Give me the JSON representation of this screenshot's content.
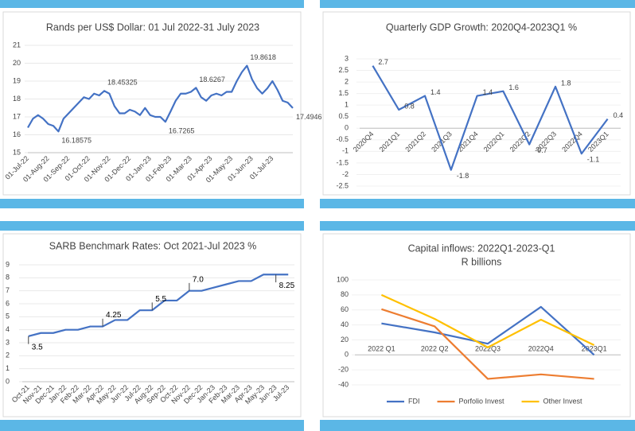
{
  "chart_data": [
    {
      "type": "line",
      "title": "Rands per US$ Dollar: 01 Jul 2022-31 July 2023",
      "color": "#4472c4",
      "categories": [
        "01-Jul-22",
        null,
        null,
        null,
        "01-Aug-22",
        null,
        null,
        null,
        "01-Sep-22",
        null,
        null,
        null,
        "01-Oct-22",
        null,
        null,
        null,
        "01-Nov-22",
        null,
        null,
        null,
        "01-Dec-22",
        null,
        null,
        null,
        "01-Jan-23",
        null,
        null,
        null,
        "01-Feb-23",
        null,
        null,
        null,
        "01-Mar-23",
        null,
        null,
        null,
        "01-Apr-23",
        null,
        null,
        null,
        "01-May-23",
        null,
        null,
        null,
        "01-Jun-23",
        null,
        null,
        null,
        "01-Jul-23",
        null,
        null,
        null,
        null
      ],
      "values": [
        16.4,
        16.9,
        17.1,
        16.9,
        16.6,
        16.5,
        16.18575,
        16.9,
        17.2,
        17.5,
        17.8,
        18.1,
        18.0,
        18.3,
        18.2,
        18.45325,
        18.3,
        17.6,
        17.2,
        17.2,
        17.4,
        17.3,
        17.1,
        17.5,
        17.1,
        17.0,
        17.0,
        16.7265,
        17.3,
        17.9,
        18.3,
        18.3,
        18.4,
        18.6267,
        18.1,
        17.9,
        18.2,
        18.3,
        18.2,
        18.4,
        18.4,
        19.0,
        19.5,
        19.8618,
        19.1,
        18.6,
        18.3,
        18.6,
        19.0,
        18.5,
        17.9,
        17.8,
        17.4946
      ],
      "value_labels": [
        null,
        null,
        null,
        null,
        null,
        null,
        "16.18575",
        null,
        null,
        null,
        null,
        null,
        null,
        null,
        null,
        "18.45325",
        null,
        null,
        null,
        null,
        null,
        null,
        null,
        null,
        null,
        null,
        null,
        "16.7265",
        null,
        null,
        null,
        null,
        null,
        "18.6267",
        null,
        null,
        null,
        null,
        null,
        null,
        null,
        null,
        null,
        "19.8618",
        null,
        null,
        null,
        null,
        null,
        null,
        null,
        null,
        "17.4946"
      ],
      "ylim": [
        15,
        21
      ],
      "yticks": [
        15,
        16,
        17,
        18,
        19,
        20,
        21
      ]
    },
    {
      "type": "line",
      "title": "Quarterly GDP Growth: 2020Q4-2023Q1  %",
      "color": "#4472c4",
      "categories": [
        "2020Q4",
        "2021Q1",
        "2021Q2",
        "2021Q3",
        "2021Q4",
        "2022Q1",
        "2022Q2",
        "2022Q3",
        "2022Q4",
        "2023Q1"
      ],
      "values": [
        2.7,
        0.8,
        1.4,
        -1.8,
        1.4,
        1.6,
        -0.7,
        1.8,
        -1.1,
        0.4
      ],
      "ylim": [
        -2.5,
        3
      ],
      "yticks": [
        -2.5,
        -2,
        -1.5,
        -1,
        -0.5,
        0,
        0.5,
        1,
        1.5,
        2,
        2.5,
        3
      ]
    },
    {
      "type": "line",
      "title": "SARB Benchmark Rates: Oct 2021-Jul 2023  %",
      "color": "#4472c4",
      "categories": [
        "Oct-21",
        "Nov-21",
        "Dec-21",
        "Jan-22",
        "Feb-22",
        "Mar-22",
        "Apr-22",
        "May-22",
        "Jun-22",
        "Jul-22",
        "Aug-22",
        "Sep-22",
        "Oct-22",
        "Nov-22",
        "Dec-22",
        "Jan-23",
        "Feb-23",
        "Mar-23",
        "Apr-23",
        "May-23",
        "Jun-23",
        "Jul-23"
      ],
      "values": [
        3.5,
        3.75,
        3.75,
        4.0,
        4.0,
        4.25,
        4.25,
        4.75,
        4.75,
        5.5,
        5.5,
        6.25,
        6.25,
        7.0,
        7.0,
        7.25,
        7.5,
        7.75,
        7.75,
        8.25,
        8.25,
        8.25
      ],
      "value_labels": [
        "3.5",
        null,
        null,
        null,
        null,
        null,
        "4.25",
        null,
        null,
        null,
        "5.5",
        null,
        null,
        "7.0",
        null,
        null,
        null,
        null,
        null,
        null,
        "8.25",
        null
      ],
      "ylim": [
        0,
        9
      ],
      "yticks": [
        0,
        1,
        2,
        3,
        4,
        5,
        6,
        7,
        8,
        9
      ]
    },
    {
      "type": "line",
      "title": "Capital inflows: 2022Q1-2023-Q1",
      "subtitle": "R billions",
      "categories": [
        "2022 Q1",
        "2022 Q2",
        "2022Q3",
        "2022Q4",
        "2023Q1"
      ],
      "series": [
        {
          "name": "FDI",
          "color": "#4472c4",
          "values": [
            42,
            30,
            15,
            64,
            0
          ]
        },
        {
          "name": "Porfolio Invest",
          "color": "#ed7d31",
          "values": [
            61,
            38,
            -32,
            -26,
            -32
          ]
        },
        {
          "name": "Other Invest",
          "color": "#ffc000",
          "values": [
            80,
            48,
            10,
            47,
            13
          ]
        }
      ],
      "ylim": [
        -40,
        100
      ],
      "yticks": [
        -40,
        -20,
        0,
        20,
        40,
        60,
        80,
        100
      ],
      "legend": "bottom"
    }
  ]
}
